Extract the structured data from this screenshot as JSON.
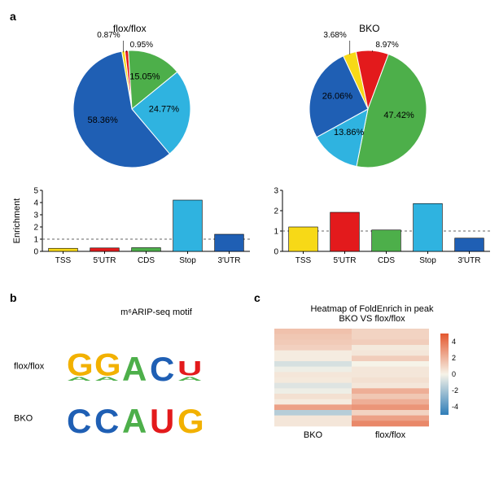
{
  "panel_a": {
    "label": "a",
    "left": {
      "title": "flox/flox",
      "pie": {
        "type": "pie",
        "slices": [
          {
            "name": "TSS",
            "value": 0.87,
            "color": "#f7d917",
            "label": "0.87%"
          },
          {
            "name": "5UTR",
            "value": 0.95,
            "color": "#e31a1c",
            "label": "0.95%"
          },
          {
            "name": "CDS",
            "value": 15.05,
            "color": "#4daf4a",
            "label": "15.05%"
          },
          {
            "name": "Stop",
            "value": 24.77,
            "color": "#2fb3e0",
            "label": "24.77%"
          },
          {
            "name": "3UTR",
            "value": 58.36,
            "color": "#1f5fb4",
            "label": "58.36%"
          }
        ],
        "start_angle_deg": -10,
        "stroke": "#ffffff",
        "stroke_width": 1
      },
      "bar": {
        "type": "bar",
        "ylabel": "Enrichment",
        "categories": [
          "TSS",
          "5′UTR",
          "CDS",
          "Stop",
          "3′UTR"
        ],
        "values": [
          0.25,
          0.28,
          0.3,
          4.2,
          1.4
        ],
        "colors": [
          "#f7d917",
          "#e31a1c",
          "#4daf4a",
          "#2fb3e0",
          "#1f5fb4"
        ],
        "ylim": [
          0,
          5
        ],
        "ytick_step": 1,
        "bar_width": 0.7,
        "refline": 1,
        "refline_color": "#666666",
        "label_fontsize": 10
      }
    },
    "right": {
      "title": "BKO",
      "pie": {
        "type": "pie",
        "slices": [
          {
            "name": "TSS",
            "value": 3.68,
            "color": "#f7d917",
            "label": "3.68%"
          },
          {
            "name": "5UTR",
            "value": 8.97,
            "color": "#e31a1c",
            "label": "8.97%"
          },
          {
            "name": "CDS",
            "value": 47.42,
            "color": "#4daf4a",
            "label": "47.42%"
          },
          {
            "name": "Stop",
            "value": 13.86,
            "color": "#2fb3e0",
            "label": "13.86%"
          },
          {
            "name": "3UTR",
            "value": 26.06,
            "color": "#1f5fb4",
            "label": "26.06%"
          }
        ],
        "start_angle_deg": -25,
        "stroke": "#ffffff",
        "stroke_width": 1
      },
      "bar": {
        "type": "bar",
        "ylabel": "",
        "categories": [
          "TSS",
          "5′UTR",
          "CDS",
          "Stop",
          "3′UTR"
        ],
        "values": [
          1.2,
          1.92,
          1.05,
          2.35,
          0.65
        ],
        "colors": [
          "#f7d917",
          "#e31a1c",
          "#4daf4a",
          "#2fb3e0",
          "#1f5fb4"
        ],
        "ylim": [
          0,
          3
        ],
        "ytick_step": 1,
        "bar_width": 0.7,
        "refline": 1,
        "refline_color": "#666666",
        "label_fontsize": 10
      }
    }
  },
  "panel_b": {
    "label": "b",
    "title": "m⁶ARIP-seq motif",
    "rows": [
      {
        "name": "flox/flox",
        "motif": [
          {
            "primary": {
              "l": "G",
              "c": "#f2b100",
              "h": 0.92
            },
            "secondary": {
              "l": "A",
              "c": "#4daf4a",
              "h": 0.15
            }
          },
          {
            "primary": {
              "l": "G",
              "c": "#f2b100",
              "h": 0.92
            },
            "secondary": {
              "l": "A",
              "c": "#4daf4a",
              "h": 0.15
            }
          },
          {
            "primary": {
              "l": "A",
              "c": "#4daf4a",
              "h": 1.0
            }
          },
          {
            "primary": {
              "l": "C",
              "c": "#1f5fb4",
              "h": 1.0
            }
          },
          {
            "primary": {
              "l": "U",
              "c": "#e31a1c",
              "h": 0.6
            },
            "secondary": {
              "l": "A",
              "c": "#4daf4a",
              "h": 0.15
            }
          }
        ]
      },
      {
        "name": "BKO",
        "motif": [
          {
            "primary": {
              "l": "C",
              "c": "#1f5fb4",
              "h": 1.0
            }
          },
          {
            "primary": {
              "l": "C",
              "c": "#1f5fb4",
              "h": 1.0
            }
          },
          {
            "primary": {
              "l": "A",
              "c": "#4daf4a",
              "h": 1.0
            }
          },
          {
            "primary": {
              "l": "U",
              "c": "#e31a1c",
              "h": 1.0
            }
          },
          {
            "primary": {
              "l": "G",
              "c": "#f2b100",
              "h": 1.0
            }
          }
        ]
      }
    ],
    "letter_font": "Georgia, 'Times New Roman', serif",
    "letter_weight": 700
  },
  "panel_c": {
    "label": "c",
    "title1": "Heatmap of FoldEnrich in peak",
    "title2": "BKO VS flox/flox",
    "heatmap": {
      "type": "heatmap",
      "columns": [
        "BKO",
        "flox/flox"
      ],
      "scale": {
        "min": -5,
        "max": 5,
        "ticks": [
          4,
          2,
          0,
          -2,
          -4
        ]
      },
      "colormap": {
        "low": "#2f7db8",
        "mid": "#f6f3e8",
        "high": "#e4572e"
      },
      "rows": [
        [
          1.6,
          1.0
        ],
        [
          1.4,
          1.0
        ],
        [
          1.3,
          1.2
        ],
        [
          1.1,
          0.3
        ],
        [
          0.2,
          0.4
        ],
        [
          0.2,
          1.2
        ],
        [
          -0.8,
          0.0
        ],
        [
          -0.2,
          0.4
        ],
        [
          0.4,
          0.4
        ],
        [
          0.3,
          0.6
        ],
        [
          -0.6,
          0.4
        ],
        [
          -0.2,
          2.2
        ],
        [
          0.6,
          1.4
        ],
        [
          0.2,
          2.2
        ],
        [
          2.6,
          3.0
        ],
        [
          -1.6,
          1.0
        ],
        [
          0.4,
          2.6
        ],
        [
          0.4,
          3.4
        ]
      ]
    }
  },
  "global": {
    "background": "#ffffff",
    "axis_color": "#000000",
    "font_family": "Arial, Helvetica, sans-serif"
  }
}
